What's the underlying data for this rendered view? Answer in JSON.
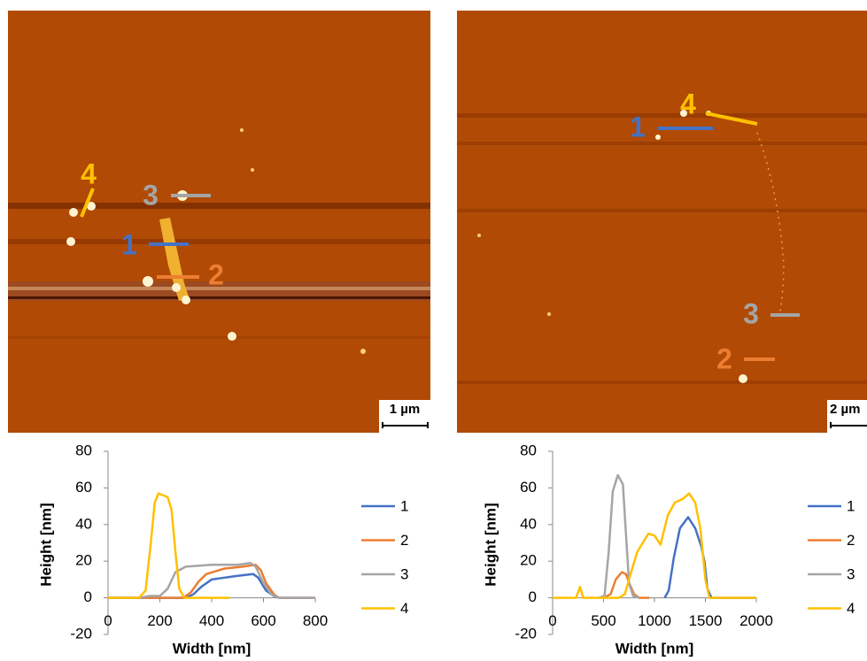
{
  "images": [
    {
      "labels": [
        "1",
        "2",
        "3",
        "4"
      ],
      "scale_bar": "1 µm"
    },
    {
      "labels": [
        "1",
        "2",
        "3",
        "4"
      ],
      "scale_bar": "2 µm"
    }
  ],
  "chart_data": [
    {
      "type": "line",
      "xlabel": "Width [nm]",
      "ylabel": "Height [nm]",
      "xlim": [
        0,
        800
      ],
      "xticks": [
        0,
        200,
        400,
        600,
        800
      ],
      "ylim": [
        -20,
        80
      ],
      "yticks": [
        -20,
        0,
        20,
        40,
        60,
        80
      ],
      "grid": false,
      "legend": "right",
      "series": [
        {
          "name": "1",
          "color": "#4472c4",
          "x": [
            0,
            300,
            330,
            360,
            400,
            450,
            500,
            560,
            580,
            610,
            640,
            660,
            800
          ],
          "values": [
            0,
            0,
            2,
            6,
            10,
            11,
            12,
            13,
            11,
            4,
            1,
            0,
            0
          ]
        },
        {
          "name": "2",
          "color": "#ed7d31",
          "x": [
            0,
            290,
            320,
            350,
            380,
            450,
            520,
            570,
            590,
            610,
            640,
            660,
            800
          ],
          "values": [
            0,
            0,
            3,
            9,
            13,
            16,
            17,
            18,
            15,
            8,
            2,
            0,
            0
          ]
        },
        {
          "name": "3",
          "color": "#a5a5a5",
          "x": [
            0,
            120,
            160,
            200,
            230,
            260,
            300,
            400,
            500,
            550,
            570,
            600,
            630,
            660,
            800
          ],
          "values": [
            0,
            0,
            1,
            1,
            5,
            14,
            17,
            18,
            18,
            19,
            17,
            8,
            2,
            0,
            0
          ]
        },
        {
          "name": "4",
          "color": "#ffc000",
          "x": [
            0,
            120,
            145,
            165,
            180,
            195,
            230,
            245,
            260,
            275,
            295,
            470
          ],
          "values": [
            0,
            0,
            4,
            30,
            52,
            57,
            55,
            48,
            25,
            5,
            0,
            0
          ]
        }
      ]
    },
    {
      "type": "line",
      "xlabel": "Width [nm]",
      "ylabel": "Height [nm]",
      "xlim": [
        0,
        2000
      ],
      "xticks": [
        0,
        500,
        1000,
        1500,
        2000
      ],
      "ylim": [
        -20,
        80
      ],
      "yticks": [
        -20,
        0,
        20,
        40,
        60,
        80
      ],
      "grid": false,
      "legend": "right",
      "series": [
        {
          "name": "1",
          "color": "#4472c4",
          "x": [
            1100,
            1140,
            1190,
            1250,
            1330,
            1400,
            1460,
            1490,
            1520,
            1560,
            2000
          ],
          "values": [
            0,
            4,
            22,
            38,
            44,
            38,
            28,
            20,
            5,
            0,
            0
          ]
        },
        {
          "name": "2",
          "color": "#ed7d31",
          "x": [
            500,
            570,
            620,
            680,
            720,
            760,
            800,
            850,
            950
          ],
          "values": [
            0,
            2,
            10,
            14,
            13,
            7,
            2,
            0,
            0
          ]
        },
        {
          "name": "3",
          "color": "#a5a5a5",
          "x": [
            450,
            510,
            550,
            590,
            640,
            690,
            720,
            750,
            790,
            850
          ],
          "values": [
            0,
            1,
            25,
            58,
            67,
            62,
            35,
            8,
            1,
            0
          ]
        },
        {
          "name": "4",
          "color": "#ffc000",
          "x": [
            0,
            230,
            270,
            300,
            650,
            710,
            760,
            830,
            940,
            1000,
            1060,
            1130,
            1200,
            1280,
            1340,
            1400,
            1450,
            1500,
            1540,
            2000
          ],
          "values": [
            0,
            0,
            6,
            0,
            0,
            2,
            12,
            25,
            35,
            34,
            29,
            45,
            52,
            54,
            57,
            52,
            38,
            10,
            0,
            0
          ]
        }
      ]
    }
  ]
}
